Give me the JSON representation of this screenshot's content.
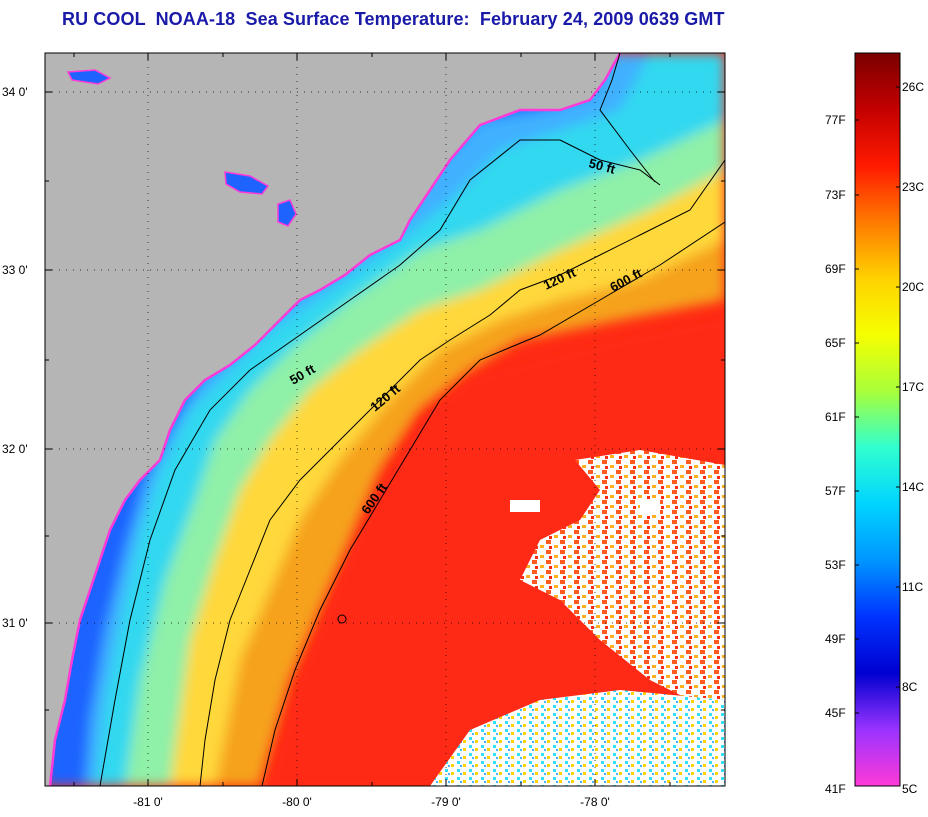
{
  "title": "RU COOL  NOAA-18  Sea Surface Temperature:  February 24, 2009 0639 GMT",
  "map": {
    "lon_ticks": [
      "-81 0'",
      "-80 0'",
      "-79 0'",
      "-78 0'"
    ],
    "lat_ticks": [
      "34 0'",
      "33 0'",
      "32 0'",
      "31 0'"
    ],
    "contour_labels": [
      {
        "text": "50 ft",
        "isobath": "50 ft"
      },
      {
        "text": "50 ft",
        "isobath": "50 ft"
      },
      {
        "text": "120 ft",
        "isobath": "120 ft"
      },
      {
        "text": "120 ft",
        "isobath": "120 ft"
      },
      {
        "text": "600 ft",
        "isobath": "600 ft"
      },
      {
        "text": "600 ft",
        "isobath": "600 ft"
      }
    ],
    "colors": {
      "land": "#b5b5b5",
      "coast_water": "#1f4bff",
      "shelf_water": "#3fb8ff",
      "mid_shelf": "#8ff0a8",
      "warm_band": "#f6a21e",
      "gulf_stream": "#ff2a14",
      "clouds": "#ffffff",
      "contour": "#000000"
    }
  },
  "colorbar": {
    "fahrenheit_labels": [
      "77F",
      "73F",
      "69F",
      "65F",
      "61F",
      "57F",
      "53F",
      "49F",
      "45F",
      "41F"
    ],
    "celsius_labels": [
      "26C",
      "23C",
      "20C",
      "17C",
      "14C",
      "11C",
      "8C",
      "5C"
    ],
    "gradient_colors": [
      "#7a0000",
      "#c40000",
      "#ff1a00",
      "#ff7a00",
      "#ffd200",
      "#f6ff00",
      "#a8ff3a",
      "#30ffd0",
      "#00d4ff",
      "#0096ff",
      "#0033ff",
      "#0000d0",
      "#9a33ff",
      "#ff3ad8"
    ]
  }
}
